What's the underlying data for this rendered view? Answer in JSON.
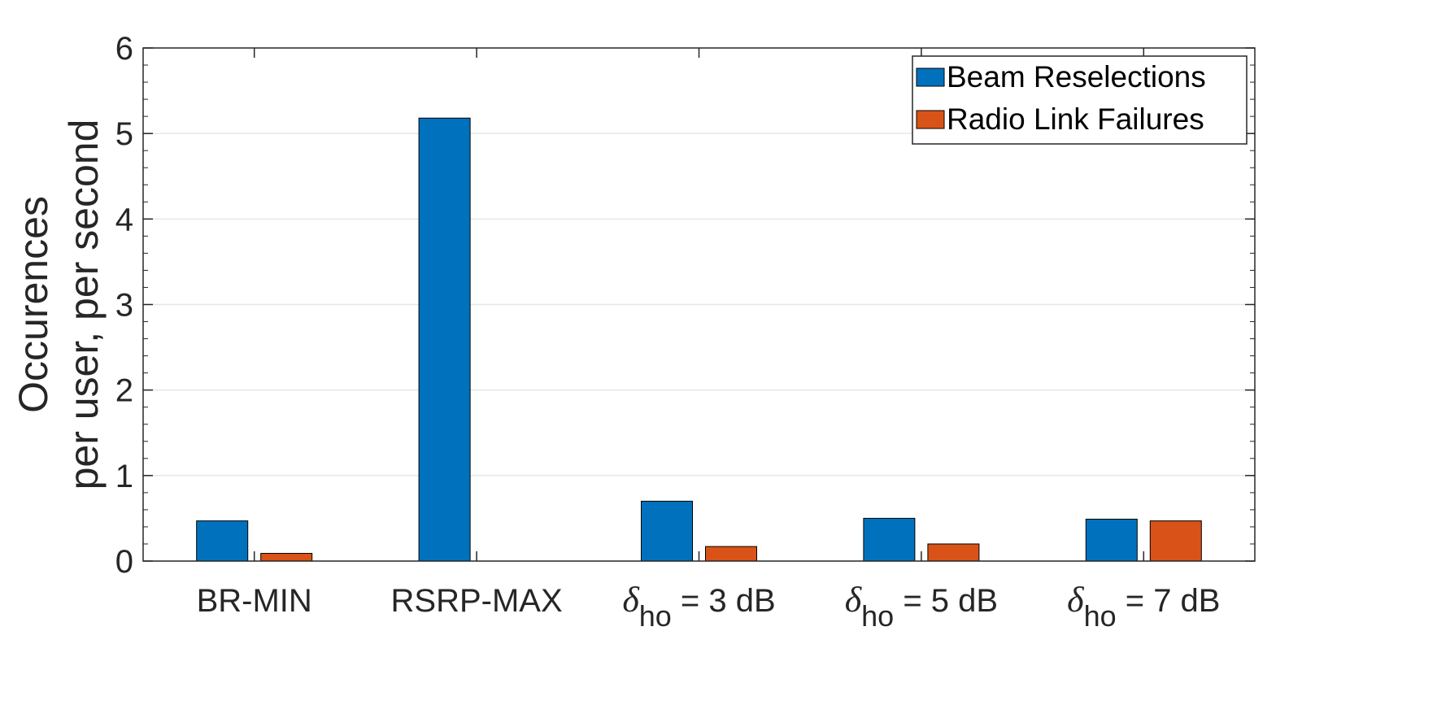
{
  "chart_data": {
    "type": "bar",
    "categories": [
      {
        "main": "BR-MIN",
        "symbol": "",
        "sub": ""
      },
      {
        "main": "RSRP-MAX",
        "symbol": "",
        "sub": ""
      },
      {
        "main": " = 3 dB",
        "symbol": "δ",
        "sub": "ho"
      },
      {
        "main": " = 5 dB",
        "symbol": "δ",
        "sub": "ho"
      },
      {
        "main": " = 7 dB",
        "symbol": "δ",
        "sub": "ho"
      }
    ],
    "series": [
      {
        "name": "Beam Reselections",
        "color": "#0072BD",
        "values": [
          0.47,
          5.18,
          0.7,
          0.5,
          0.49
        ]
      },
      {
        "name": "Radio Link Failures",
        "color": "#D95319",
        "values": [
          0.09,
          0.0,
          0.17,
          0.2,
          0.47
        ]
      }
    ],
    "ylabel_lines": [
      "Occurences",
      "per user, per second"
    ],
    "ylim": [
      0,
      6
    ],
    "yticks": [
      "0",
      "1",
      "2",
      "3",
      "4",
      "5",
      "6"
    ],
    "grid": true,
    "legend_position": "top-right"
  }
}
